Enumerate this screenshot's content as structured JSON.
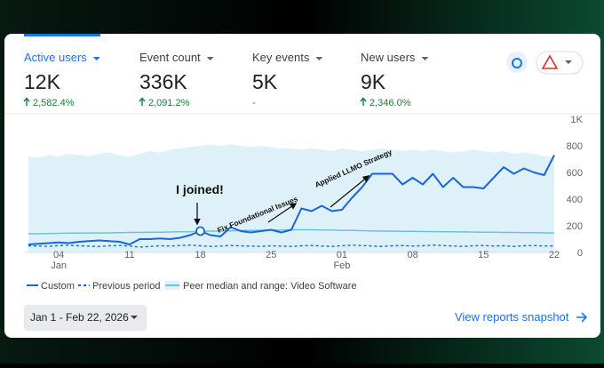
{
  "metrics": [
    {
      "label": "Active users",
      "value": "12K",
      "change": "2,582.4%"
    },
    {
      "label": "Event count",
      "value": "336K",
      "change": "2,091.2%"
    },
    {
      "label": "Key events",
      "value": "5K",
      "change": "-"
    },
    {
      "label": "New users",
      "value": "9K",
      "change": "2,346.0%"
    }
  ],
  "chart_data": {
    "type": "line",
    "categories": [
      null,
      null,
      null,
      "04",
      null,
      null,
      null,
      null,
      null,
      null,
      "11",
      null,
      null,
      null,
      null,
      null,
      null,
      "18",
      null,
      null,
      null,
      null,
      null,
      null,
      "25",
      null,
      null,
      null,
      null,
      null,
      null,
      "01",
      null,
      null,
      null,
      null,
      null,
      null,
      "08",
      null,
      null,
      null,
      null,
      null,
      null,
      "15",
      null,
      null,
      null,
      null,
      null,
      null,
      "22"
    ],
    "x_month_labels": [
      "Jan",
      "Feb"
    ],
    "series": [
      {
        "name": "Custom",
        "color": "#1a66d6",
        "values": [
          60,
          65,
          70,
          75,
          70,
          80,
          85,
          90,
          85,
          80,
          60,
          100,
          100,
          105,
          100,
          110,
          130,
          160,
          130,
          120,
          190,
          160,
          150,
          160,
          170,
          150,
          170,
          330,
          310,
          350,
          310,
          320,
          410,
          490,
          590,
          590,
          590,
          510,
          560,
          510,
          590,
          490,
          560,
          490,
          490,
          480,
          560,
          640,
          590,
          630,
          600,
          580,
          730
        ]
      },
      {
        "name": "Previous period",
        "color": "#1a66d6",
        "values": [
          50,
          48,
          45,
          52,
          55,
          50,
          47,
          45,
          50,
          52,
          48,
          40,
          45,
          50,
          48,
          52,
          55,
          50,
          45,
          48,
          52,
          50,
          47,
          45,
          50,
          48,
          45,
          50,
          52,
          48,
          45,
          50,
          55,
          52,
          48,
          45,
          50,
          52,
          48,
          50,
          55,
          52,
          48,
          45,
          50,
          52,
          48,
          50,
          45,
          50,
          52,
          48,
          50
        ]
      },
      {
        "name": "Peer median and range: Video Software",
        "color": "#6cc3d5",
        "range_color": "#dff1f8",
        "values": [
          140,
          140,
          142,
          143,
          145,
          145,
          146,
          146,
          147,
          148,
          150,
          150,
          152,
          152,
          153,
          155,
          155,
          158,
          160,
          160,
          162,
          165,
          165,
          167,
          168,
          168,
          170,
          170,
          170,
          168,
          168,
          165,
          165,
          163,
          162,
          160,
          160,
          158,
          158,
          157,
          156,
          155,
          155,
          154,
          153,
          152,
          152,
          150,
          150,
          148,
          148,
          147,
          145
        ],
        "range_high": [
          720,
          710,
          730,
          720,
          740,
          730,
          720,
          740,
          750,
          730,
          720,
          740,
          760,
          750,
          770,
          780,
          790,
          800,
          810,
          800,
          810,
          800,
          790,
          800,
          790,
          780,
          780,
          770,
          780,
          770,
          760,
          780,
          770,
          760,
          770,
          780,
          770,
          760,
          770,
          760,
          770,
          760,
          750,
          760,
          770,
          760,
          750,
          760,
          740,
          750,
          740,
          720,
          710
        ]
      }
    ],
    "ylim": [
      0,
      1000
    ],
    "yticks": [
      0,
      200,
      400,
      600,
      800,
      {
        "value": 1000,
        "label": "1K"
      }
    ],
    "grid": false,
    "annotations": [
      {
        "text": "I joined!"
      },
      {
        "text": "Fix Foundational Issues"
      },
      {
        "text": "Applied LLMO Strategy"
      }
    ]
  },
  "date_range": "Jan 1 - Feb 22, 2026",
  "link": "View reports snapshot"
}
